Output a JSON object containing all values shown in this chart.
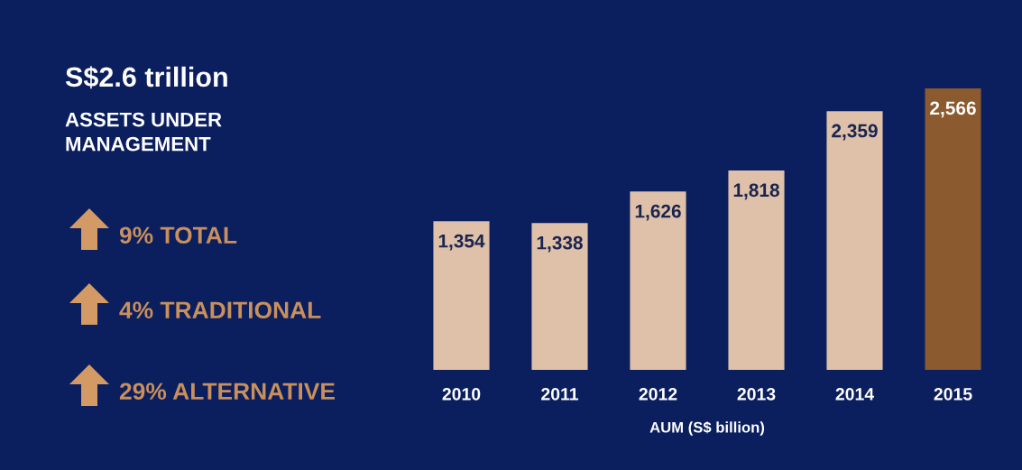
{
  "chart_data": {
    "type": "bar",
    "title": "S$2.6 trillion",
    "subtitle": "ASSETS UNDER\nMANAGEMENT",
    "xlabel": "AUM (S$ billion)",
    "categories": [
      "2010",
      "2011",
      "2012",
      "2013",
      "2014",
      "2015"
    ],
    "values": [
      1354,
      1338,
      1626,
      1818,
      2359,
      2566
    ],
    "value_labels": [
      "1,354",
      "1,338",
      "1,626",
      "1,818",
      "2,359",
      "2,566"
    ],
    "colors": [
      "#dfc0a8",
      "#dfc0a8",
      "#dfc0a8",
      "#dfc0a8",
      "#dfc0a8",
      "#8b5a2e"
    ],
    "tick_labels": "x",
    "annotations": [
      "9% TOTAL",
      "4% TRADITIONAL",
      "29% ALTERNATIVE"
    ]
  }
}
